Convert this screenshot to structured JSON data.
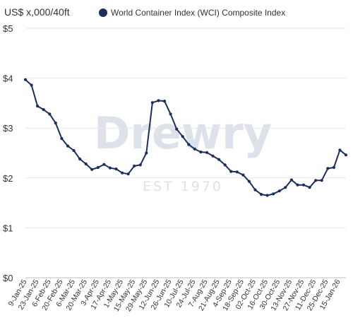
{
  "chart_data": {
    "type": "line",
    "title": "",
    "ylabel": "US$ x,000/40ft",
    "xlabel": "",
    "ylim": [
      0,
      5
    ],
    "y_ticks": [
      {
        "value": 0,
        "label": "$0"
      },
      {
        "value": 1,
        "label": "$1"
      },
      {
        "value": 2,
        "label": "$2"
      },
      {
        "value": 3,
        "label": "$3"
      },
      {
        "value": 4,
        "label": "$4"
      },
      {
        "value": 5,
        "label": "$5"
      }
    ],
    "grid": true,
    "legend_position": "top",
    "x_tick_labels": [
      "9-Jan-25",
      "23-Jan-25",
      "6-Feb-25",
      "20-Feb-25",
      "6-Mar-25",
      "20-Mar-25",
      "3-Apr-25",
      "17-Apr-25",
      "1-May-25",
      "15-May-25",
      "29-May-25",
      "12-Jun-25",
      "26-Jun-25",
      "10-Jul-25",
      "24-Jul-25",
      "7-Aug-25",
      "21-Aug-25",
      "4-Sep-25",
      "18-Sep-25",
      "02-Oct-25",
      "16-Oct-25",
      "30-Oct-25",
      "13-Nov-25",
      "27-Nov-25",
      "11-Dec-25",
      "25-Dec-25",
      "15-Jan-26"
    ],
    "series": [
      {
        "name": "World Container Index (WCI) Composite Index",
        "color": "#1b2f5e",
        "values": [
          3.97,
          3.86,
          3.44,
          3.37,
          3.28,
          3.1,
          2.79,
          2.64,
          2.55,
          2.38,
          2.28,
          2.17,
          2.21,
          2.27,
          2.2,
          2.18,
          2.1,
          2.08,
          2.24,
          2.26,
          2.5,
          3.51,
          3.55,
          3.54,
          3.28,
          2.98,
          2.83,
          2.67,
          2.58,
          2.52,
          2.51,
          2.44,
          2.37,
          2.26,
          2.13,
          2.12,
          2.06,
          1.93,
          1.76,
          1.67,
          1.65,
          1.68,
          1.74,
          1.81,
          1.96,
          1.86,
          1.86,
          1.81,
          1.95,
          1.95,
          2.19,
          2.21,
          2.56,
          2.46
        ]
      }
    ]
  },
  "watermark": {
    "brand": "Drewry",
    "tagline": "EST 1970"
  }
}
